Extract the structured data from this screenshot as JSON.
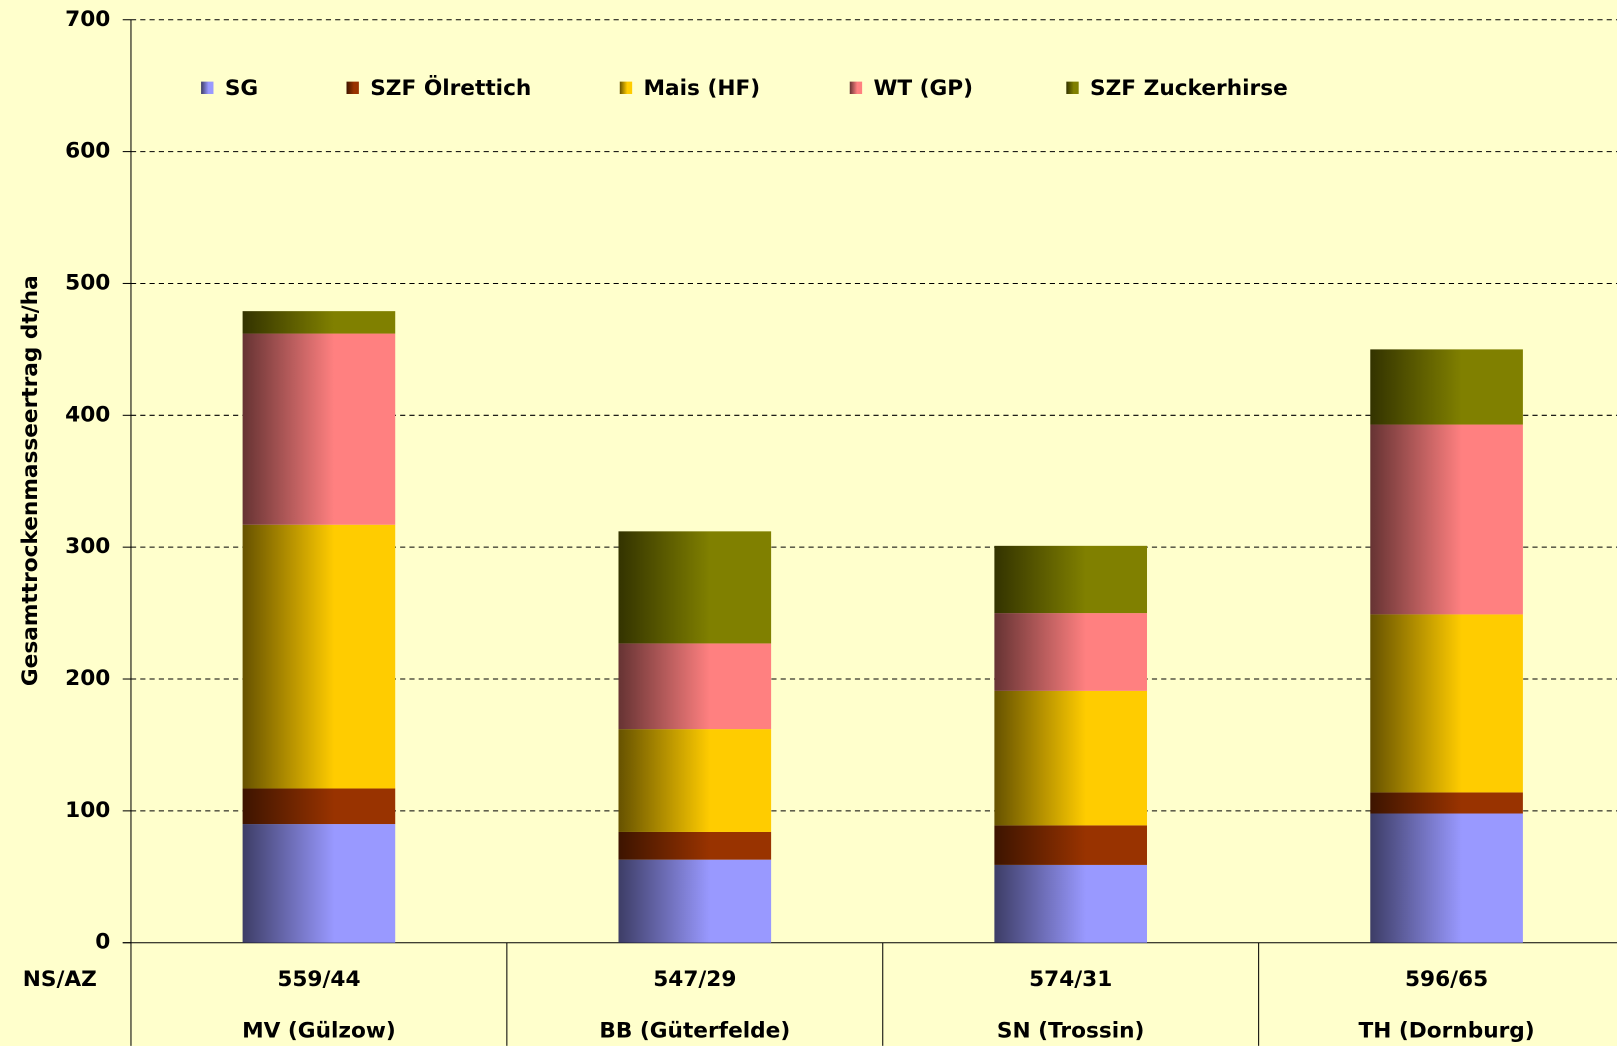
{
  "chart_data": {
    "type": "stacked_bar",
    "y_axis_label": "Gesamttrockenmasseertrag dt/ha",
    "row_label": "NS/AZ",
    "ns_az": [
      "559/44",
      "547/29",
      "574/31",
      "596/65"
    ],
    "categories": [
      "MV (Gülzow)",
      "BB (Güterfelde)",
      "SN (Trossin)",
      "TH (Dornburg)"
    ],
    "series": [
      {
        "name": "SG",
        "color": "#9999ff",
        "values": [
          90,
          63,
          59,
          98
        ]
      },
      {
        "name": "SZF Ölrettich",
        "color": "#993300",
        "values": [
          27,
          21,
          30,
          16
        ]
      },
      {
        "name": "Mais (HF)",
        "color": "#ffcc00",
        "values": [
          200,
          78,
          102,
          135
        ]
      },
      {
        "name": "WT (GP)",
        "color": "#ff8080",
        "values": [
          145,
          65,
          59,
          144
        ]
      },
      {
        "name": "SZF Zuckerhirse",
        "color": "#808000",
        "values": [
          17,
          85,
          51,
          57
        ]
      }
    ],
    "ylim": [
      0,
      700
    ],
    "yticks": [
      0,
      100,
      200,
      300,
      400,
      500,
      600,
      700
    ],
    "grid": true
  }
}
